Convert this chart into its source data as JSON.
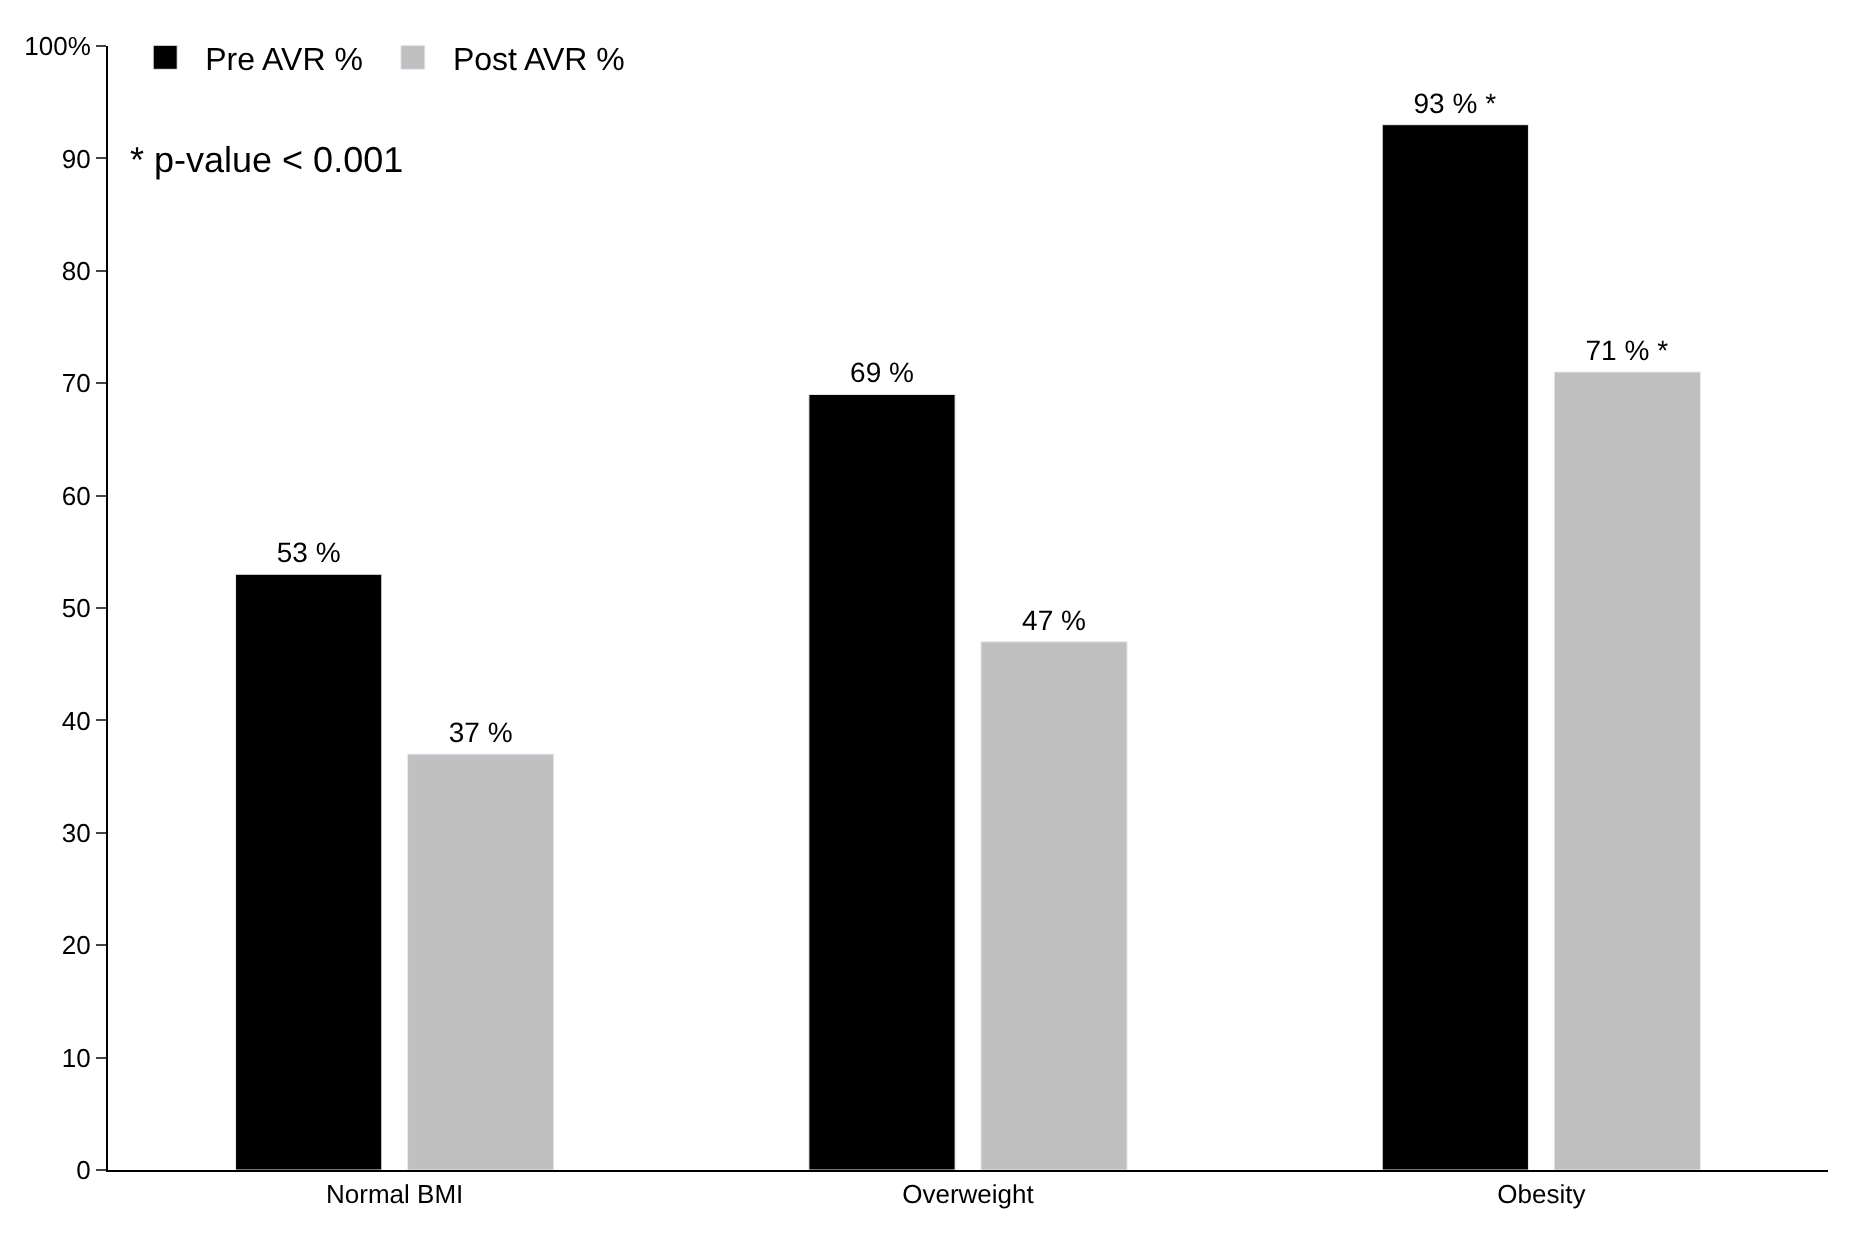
{
  "chart_data": {
    "type": "bar",
    "categories": [
      "Normal BMI",
      "Overweight",
      "Obesity"
    ],
    "series": [
      {
        "name": "Pre AVR %",
        "color": "#000000",
        "values": [
          53,
          69,
          93
        ],
        "value_labels": [
          "53 %",
          "69 %",
          "93 % *"
        ]
      },
      {
        "name": "Post AVR %",
        "color": "#c0c0c0",
        "values": [
          37,
          47,
          71
        ],
        "value_labels": [
          "37 %",
          "47 %",
          "71 % *"
        ]
      }
    ],
    "ylim": [
      0,
      100
    ],
    "yticks": [
      0,
      10,
      20,
      30,
      40,
      50,
      60,
      70,
      80,
      90,
      {
        "value": 100,
        "label": "100%"
      }
    ],
    "legend": "top left",
    "annotations": [
      "* p-value < 0.001"
    ]
  }
}
